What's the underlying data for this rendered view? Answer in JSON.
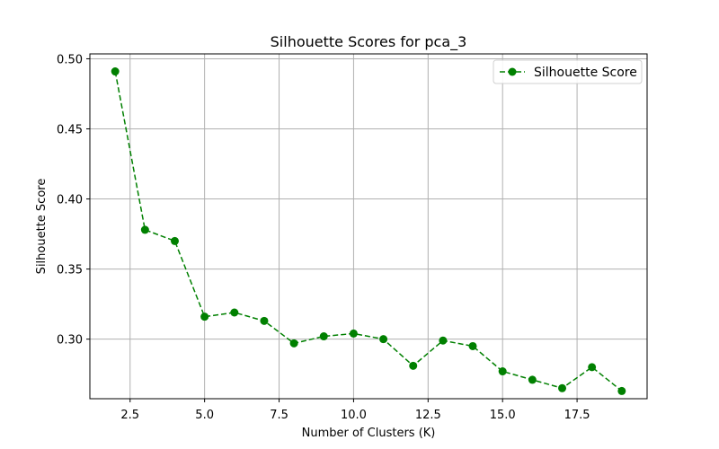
{
  "chart_data": {
    "type": "line",
    "title": "Silhouette Scores for pca_3",
    "xlabel": "Number of Clusters (K)",
    "ylabel": "Silhouette Score",
    "xlim": [
      1.15,
      19.85
    ],
    "ylim": [
      0.2575,
      0.5035
    ],
    "xticks": [
      2.5,
      5.0,
      7.5,
      10.0,
      12.5,
      15.0,
      17.5
    ],
    "xtick_labels": [
      "2.5",
      "5.0",
      "7.5",
      "10.0",
      "12.5",
      "15.0",
      "17.5"
    ],
    "yticks": [
      0.3,
      0.35,
      0.4,
      0.45,
      0.5
    ],
    "ytick_labels": [
      "0.30",
      "0.35",
      "0.40",
      "0.45",
      "0.50"
    ],
    "grid": true,
    "legend": {
      "position": "top-right"
    },
    "series": [
      {
        "name": "Silhouette Score",
        "color": "#008000",
        "line_style": "dashed",
        "marker": "circle",
        "x": [
          2,
          3,
          4,
          5,
          6,
          7,
          8,
          9,
          10,
          11,
          12,
          13,
          14,
          15,
          16,
          17,
          18,
          19
        ],
        "y": [
          0.491,
          0.378,
          0.37,
          0.316,
          0.319,
          0.313,
          0.297,
          0.302,
          0.304,
          0.3,
          0.281,
          0.299,
          0.295,
          0.277,
          0.271,
          0.265,
          0.28,
          0.263
        ]
      }
    ]
  }
}
